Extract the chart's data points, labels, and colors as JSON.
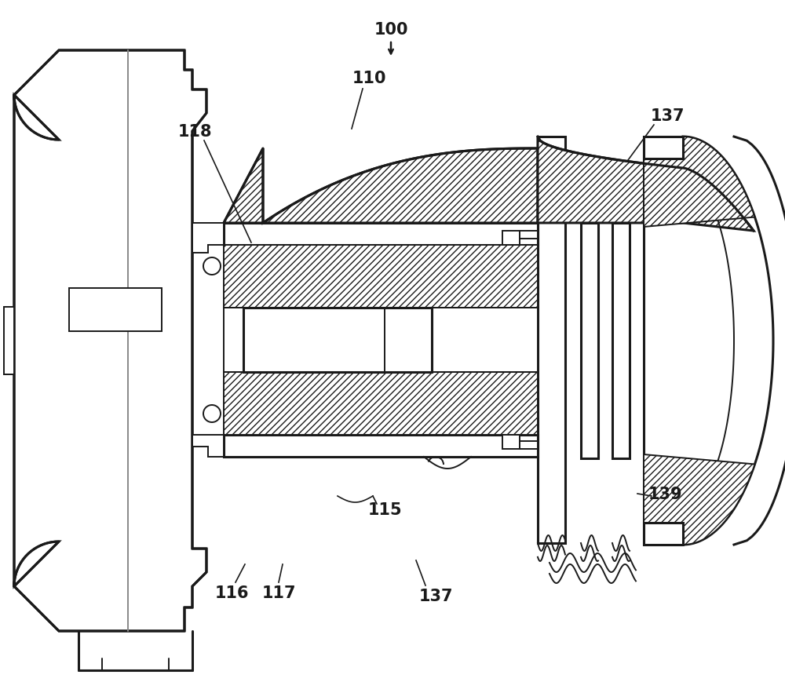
{
  "bg_color": "#ffffff",
  "line_color": "#1a1a1a",
  "lw_main": 2.2,
  "lw_thin": 1.4,
  "lw_label": 1.2,
  "fig_width": 10.0,
  "fig_height": 8.7,
  "dpi": 100,
  "label_fontsize": 15,
  "label_bold": true
}
